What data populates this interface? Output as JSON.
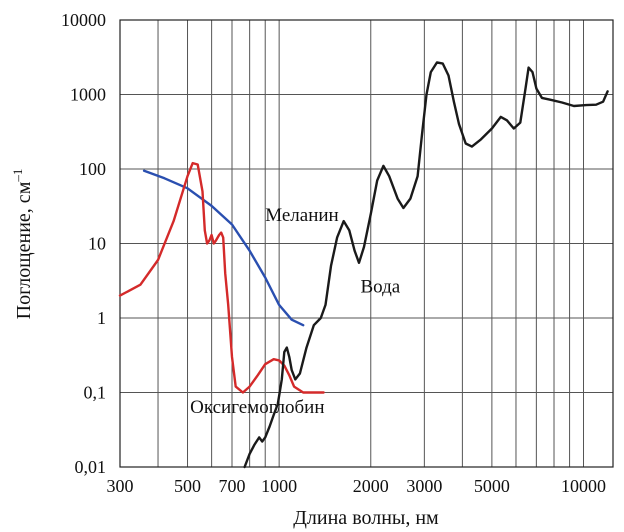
{
  "chart_data": {
    "type": "line",
    "xlabel": "Длина волны, нм",
    "ylabel": "Поглощение, см",
    "ylabel_sup": "–1",
    "y_scale": "log",
    "ylim": [
      0.01,
      10000
    ],
    "x_scale": "log",
    "xlim": [
      300,
      12500
    ],
    "x_ticks": [
      {
        "value": 300,
        "label": "300"
      },
      {
        "value": 500,
        "label": "500"
      },
      {
        "value": 700,
        "label": "700"
      },
      {
        "value": 1000,
        "label": "1000"
      },
      {
        "value": 2000,
        "label": "2000"
      },
      {
        "value": 3000,
        "label": "3000"
      },
      {
        "value": 5000,
        "label": "5000"
      },
      {
        "value": 10000,
        "label": "10000"
      }
    ],
    "x_grid": [
      300,
      400,
      500,
      600,
      700,
      800,
      900,
      1000,
      2000,
      3000,
      4000,
      5000,
      6000,
      7000,
      8000,
      9000,
      10000
    ],
    "y_ticks": [
      {
        "value": 0.01,
        "label": "0,01"
      },
      {
        "value": 0.1,
        "label": "0,1"
      },
      {
        "value": 1,
        "label": "1"
      },
      {
        "value": 10,
        "label": "10"
      },
      {
        "value": 100,
        "label": "100"
      },
      {
        "value": 1000,
        "label": "1000"
      },
      {
        "value": 10000,
        "label": "10000"
      }
    ],
    "grid": true,
    "series": [
      {
        "name": "Меланин",
        "color": "#2a4fb0",
        "points": [
          [
            360,
            95
          ],
          [
            420,
            75
          ],
          [
            500,
            55
          ],
          [
            600,
            32
          ],
          [
            700,
            18
          ],
          [
            800,
            8
          ],
          [
            900,
            3.5
          ],
          [
            1000,
            1.5
          ],
          [
            1100,
            0.95
          ],
          [
            1200,
            0.8
          ]
        ]
      },
      {
        "name": "Оксигемоглобин",
        "color": "#d42a2a",
        "points": [
          [
            300,
            2
          ],
          [
            350,
            2.8
          ],
          [
            400,
            6
          ],
          [
            450,
            20
          ],
          [
            500,
            80
          ],
          [
            520,
            120
          ],
          [
            540,
            115
          ],
          [
            560,
            50
          ],
          [
            570,
            15
          ],
          [
            580,
            10
          ],
          [
            590,
            11
          ],
          [
            600,
            13
          ],
          [
            610,
            10
          ],
          [
            620,
            11
          ],
          [
            635,
            13
          ],
          [
            645,
            14
          ],
          [
            655,
            12
          ],
          [
            665,
            4
          ],
          [
            680,
            1.5
          ],
          [
            700,
            0.3
          ],
          [
            720,
            0.12
          ],
          [
            760,
            0.1
          ],
          [
            800,
            0.12
          ],
          [
            850,
            0.17
          ],
          [
            900,
            0.24
          ],
          [
            960,
            0.28
          ],
          [
            1000,
            0.27
          ],
          [
            1040,
            0.23
          ],
          [
            1080,
            0.17
          ],
          [
            1120,
            0.12
          ],
          [
            1200,
            0.1
          ],
          [
            1300,
            0.1
          ],
          [
            1400,
            0.1
          ]
        ]
      },
      {
        "name": "Вода",
        "color": "#1a1a1a",
        "points": [
          [
            770,
            0.01
          ],
          [
            800,
            0.015
          ],
          [
            830,
            0.02
          ],
          [
            860,
            0.025
          ],
          [
            880,
            0.022
          ],
          [
            900,
            0.025
          ],
          [
            930,
            0.035
          ],
          [
            960,
            0.05
          ],
          [
            990,
            0.07
          ],
          [
            1020,
            0.15
          ],
          [
            1040,
            0.35
          ],
          [
            1060,
            0.4
          ],
          [
            1080,
            0.3
          ],
          [
            1100,
            0.2
          ],
          [
            1130,
            0.15
          ],
          [
            1170,
            0.18
          ],
          [
            1230,
            0.4
          ],
          [
            1300,
            0.8
          ],
          [
            1370,
            1
          ],
          [
            1420,
            1.5
          ],
          [
            1480,
            5
          ],
          [
            1550,
            12
          ],
          [
            1630,
            20
          ],
          [
            1700,
            15
          ],
          [
            1770,
            8
          ],
          [
            1830,
            5.5
          ],
          [
            1900,
            9
          ],
          [
            2000,
            25
          ],
          [
            2100,
            70
          ],
          [
            2200,
            110
          ],
          [
            2300,
            80
          ],
          [
            2450,
            40
          ],
          [
            2560,
            30
          ],
          [
            2700,
            40
          ],
          [
            2850,
            80
          ],
          [
            2950,
            300
          ],
          [
            3050,
            1000
          ],
          [
            3150,
            2000
          ],
          [
            3300,
            2700
          ],
          [
            3450,
            2600
          ],
          [
            3600,
            1800
          ],
          [
            3750,
            800
          ],
          [
            3900,
            400
          ],
          [
            4100,
            220
          ],
          [
            4300,
            200
          ],
          [
            4600,
            250
          ],
          [
            5000,
            350
          ],
          [
            5350,
            500
          ],
          [
            5600,
            450
          ],
          [
            5900,
            350
          ],
          [
            6200,
            420
          ],
          [
            6450,
            1200
          ],
          [
            6600,
            2300
          ],
          [
            6800,
            2000
          ],
          [
            7000,
            1200
          ],
          [
            7300,
            900
          ],
          [
            7800,
            850
          ],
          [
            8500,
            780
          ],
          [
            9300,
            700
          ],
          [
            10200,
            720
          ],
          [
            11000,
            730
          ],
          [
            11600,
            800
          ],
          [
            12000,
            1100
          ]
        ]
      }
    ],
    "annotations": [
      {
        "text": "Меланин",
        "x": 900,
        "y": 20
      },
      {
        "text": "Вода",
        "x": 1850,
        "y": 2.2
      },
      {
        "text": "Оксигемоглобин",
        "x": 510,
        "y": 0.053
      }
    ]
  }
}
